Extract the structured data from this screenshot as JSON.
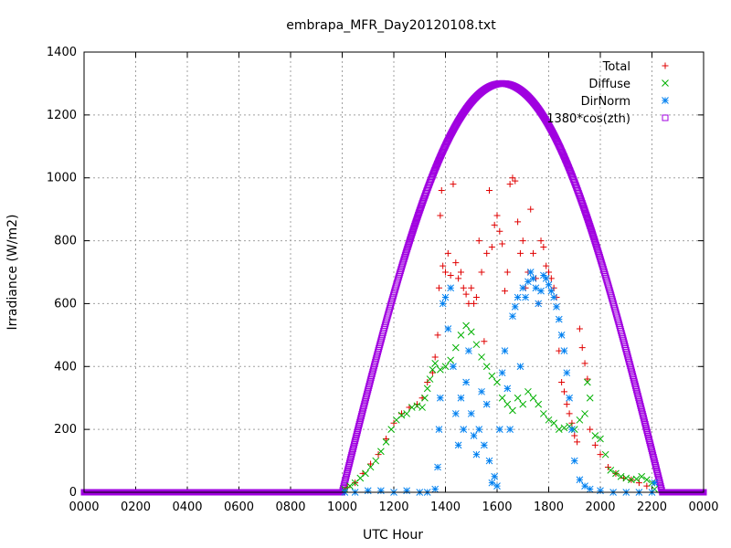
{
  "chart_data": {
    "type": "scatter",
    "title": "embrapa_MFR_Day20120108.txt",
    "xlabel": "UTC Hour",
    "ylabel": "Irradiance (W/m2)",
    "xlim": [
      0,
      24
    ],
    "ylim": [
      0,
      1400
    ],
    "x_ticks": [
      0,
      2,
      4,
      6,
      8,
      10,
      12,
      14,
      16,
      18,
      20,
      22,
      24
    ],
    "x_tick_labels": [
      "0000",
      "0200",
      "0400",
      "0600",
      "0800",
      "1000",
      "1200",
      "1400",
      "1600",
      "1800",
      "2000",
      "2200",
      "0000"
    ],
    "y_ticks": [
      0,
      200,
      400,
      600,
      800,
      1000,
      1200,
      1400
    ],
    "y_tick_labels": [
      "0",
      "200",
      "400",
      "600",
      "800",
      "1000",
      "1200",
      "1400"
    ],
    "grid": true,
    "legend_position": "top-right",
    "series": [
      {
        "name": "Total",
        "marker": "plus",
        "color": "#e00000",
        "points": [
          [
            10.2,
            15
          ],
          [
            10.5,
            30
          ],
          [
            10.8,
            60
          ],
          [
            11.1,
            90
          ],
          [
            11.4,
            120
          ],
          [
            11.7,
            170
          ],
          [
            12.0,
            220
          ],
          [
            12.3,
            250
          ],
          [
            12.6,
            270
          ],
          [
            12.9,
            280
          ],
          [
            13.1,
            300
          ],
          [
            13.3,
            350
          ],
          [
            13.5,
            380
          ],
          [
            13.6,
            430
          ],
          [
            13.7,
            500
          ],
          [
            13.75,
            650
          ],
          [
            13.8,
            880
          ],
          [
            13.85,
            960
          ],
          [
            13.9,
            720
          ],
          [
            14.0,
            700
          ],
          [
            14.1,
            760
          ],
          [
            14.2,
            690
          ],
          [
            14.3,
            980
          ],
          [
            14.4,
            730
          ],
          [
            14.5,
            680
          ],
          [
            14.6,
            700
          ],
          [
            14.7,
            650
          ],
          [
            14.8,
            630
          ],
          [
            14.9,
            600
          ],
          [
            15.0,
            650
          ],
          [
            15.1,
            600
          ],
          [
            15.2,
            620
          ],
          [
            15.3,
            800
          ],
          [
            15.4,
            700
          ],
          [
            15.5,
            480
          ],
          [
            15.6,
            760
          ],
          [
            15.7,
            960
          ],
          [
            15.8,
            780
          ],
          [
            15.9,
            850
          ],
          [
            16.0,
            880
          ],
          [
            16.1,
            830
          ],
          [
            16.2,
            790
          ],
          [
            16.3,
            640
          ],
          [
            16.4,
            700
          ],
          [
            16.5,
            980
          ],
          [
            16.6,
            1000
          ],
          [
            16.7,
            990
          ],
          [
            16.8,
            860
          ],
          [
            16.9,
            760
          ],
          [
            17.0,
            800
          ],
          [
            17.1,
            650
          ],
          [
            17.2,
            700
          ],
          [
            17.3,
            900
          ],
          [
            17.4,
            760
          ],
          [
            17.5,
            680
          ],
          [
            17.6,
            600
          ],
          [
            17.7,
            800
          ],
          [
            17.8,
            780
          ],
          [
            17.9,
            720
          ],
          [
            18.0,
            700
          ],
          [
            18.1,
            680
          ],
          [
            18.2,
            650
          ],
          [
            18.3,
            620
          ],
          [
            18.4,
            450
          ],
          [
            18.5,
            350
          ],
          [
            18.6,
            320
          ],
          [
            18.7,
            280
          ],
          [
            18.8,
            250
          ],
          [
            18.9,
            220
          ],
          [
            19.0,
            180
          ],
          [
            19.1,
            160
          ],
          [
            19.2,
            520
          ],
          [
            19.3,
            460
          ],
          [
            19.4,
            410
          ],
          [
            19.5,
            360
          ],
          [
            19.6,
            200
          ],
          [
            19.8,
            150
          ],
          [
            20.0,
            120
          ],
          [
            20.3,
            80
          ],
          [
            20.6,
            60
          ],
          [
            20.9,
            45
          ],
          [
            21.2,
            40
          ],
          [
            21.5,
            30
          ],
          [
            21.8,
            20
          ]
        ]
      },
      {
        "name": "Diffuse",
        "marker": "cross",
        "color": "#00b000",
        "points": [
          [
            10.1,
            10
          ],
          [
            10.3,
            20
          ],
          [
            10.5,
            30
          ],
          [
            10.7,
            45
          ],
          [
            10.9,
            60
          ],
          [
            11.1,
            80
          ],
          [
            11.3,
            100
          ],
          [
            11.5,
            130
          ],
          [
            11.7,
            160
          ],
          [
            11.9,
            200
          ],
          [
            12.1,
            230
          ],
          [
            12.3,
            245
          ],
          [
            12.5,
            250
          ],
          [
            12.7,
            270
          ],
          [
            12.9,
            275
          ],
          [
            13.1,
            270
          ],
          [
            13.2,
            300
          ],
          [
            13.3,
            330
          ],
          [
            13.4,
            360
          ],
          [
            13.5,
            390
          ],
          [
            13.6,
            410
          ],
          [
            13.8,
            390
          ],
          [
            14.0,
            400
          ],
          [
            14.2,
            420
          ],
          [
            14.4,
            460
          ],
          [
            14.6,
            500
          ],
          [
            14.8,
            530
          ],
          [
            15.0,
            510
          ],
          [
            15.2,
            470
          ],
          [
            15.4,
            430
          ],
          [
            15.6,
            400
          ],
          [
            15.8,
            370
          ],
          [
            16.0,
            350
          ],
          [
            16.2,
            300
          ],
          [
            16.4,
            280
          ],
          [
            16.6,
            260
          ],
          [
            16.8,
            300
          ],
          [
            17.0,
            280
          ],
          [
            17.2,
            320
          ],
          [
            17.4,
            300
          ],
          [
            17.6,
            280
          ],
          [
            17.8,
            250
          ],
          [
            18.0,
            230
          ],
          [
            18.2,
            220
          ],
          [
            18.4,
            200
          ],
          [
            18.6,
            205
          ],
          [
            18.8,
            210
          ],
          [
            19.0,
            200
          ],
          [
            19.2,
            230
          ],
          [
            19.4,
            250
          ],
          [
            19.5,
            350
          ],
          [
            19.6,
            300
          ],
          [
            19.8,
            180
          ],
          [
            20.0,
            170
          ],
          [
            20.2,
            120
          ],
          [
            20.4,
            70
          ],
          [
            20.6,
            60
          ],
          [
            20.8,
            50
          ],
          [
            21.0,
            45
          ],
          [
            21.2,
            40
          ],
          [
            21.4,
            42
          ],
          [
            21.6,
            50
          ],
          [
            21.8,
            40
          ],
          [
            22.0,
            30
          ],
          [
            22.1,
            10
          ]
        ]
      },
      {
        "name": "DirNorm",
        "marker": "star",
        "color": "#0080f0",
        "points": [
          [
            10.1,
            0
          ],
          [
            10.5,
            0
          ],
          [
            11.0,
            5
          ],
          [
            11.5,
            5
          ],
          [
            12.0,
            0
          ],
          [
            12.5,
            5
          ],
          [
            13.0,
            0
          ],
          [
            13.3,
            0
          ],
          [
            13.6,
            10
          ],
          [
            13.7,
            80
          ],
          [
            13.75,
            200
          ],
          [
            13.8,
            300
          ],
          [
            13.9,
            600
          ],
          [
            14.0,
            620
          ],
          [
            14.1,
            520
          ],
          [
            14.2,
            650
          ],
          [
            14.3,
            400
          ],
          [
            14.4,
            250
          ],
          [
            14.5,
            150
          ],
          [
            14.6,
            300
          ],
          [
            14.7,
            200
          ],
          [
            14.8,
            350
          ],
          [
            14.9,
            450
          ],
          [
            15.0,
            250
          ],
          [
            15.1,
            180
          ],
          [
            15.2,
            120
          ],
          [
            15.3,
            200
          ],
          [
            15.4,
            320
          ],
          [
            15.5,
            150
          ],
          [
            15.6,
            280
          ],
          [
            15.7,
            100
          ],
          [
            15.8,
            30
          ],
          [
            15.9,
            50
          ],
          [
            16.0,
            20
          ],
          [
            16.1,
            200
          ],
          [
            16.2,
            380
          ],
          [
            16.3,
            450
          ],
          [
            16.4,
            330
          ],
          [
            16.5,
            200
          ],
          [
            16.6,
            560
          ],
          [
            16.7,
            590
          ],
          [
            16.8,
            620
          ],
          [
            16.9,
            400
          ],
          [
            17.0,
            650
          ],
          [
            17.1,
            620
          ],
          [
            17.2,
            670
          ],
          [
            17.3,
            700
          ],
          [
            17.4,
            680
          ],
          [
            17.5,
            650
          ],
          [
            17.6,
            600
          ],
          [
            17.7,
            640
          ],
          [
            17.8,
            690
          ],
          [
            17.9,
            680
          ],
          [
            18.0,
            660
          ],
          [
            18.1,
            640
          ],
          [
            18.2,
            620
          ],
          [
            18.3,
            590
          ],
          [
            18.4,
            550
          ],
          [
            18.5,
            500
          ],
          [
            18.6,
            450
          ],
          [
            18.7,
            380
          ],
          [
            18.8,
            300
          ],
          [
            18.9,
            200
          ],
          [
            19.0,
            100
          ],
          [
            19.2,
            40
          ],
          [
            19.4,
            20
          ],
          [
            19.6,
            10
          ],
          [
            20.0,
            5
          ],
          [
            20.5,
            0
          ],
          [
            21.0,
            0
          ],
          [
            21.5,
            0
          ],
          [
            22.0,
            0
          ],
          [
            22.1,
            30
          ]
        ]
      },
      {
        "name": "1380*cos(zth)",
        "marker": "square",
        "color": "#a000e0",
        "points": []
      }
    ],
    "cosine_curve": {
      "peak": 1300,
      "center_hour": 16.2,
      "start_hour": 10.0,
      "end_hour": 22.4
    }
  }
}
